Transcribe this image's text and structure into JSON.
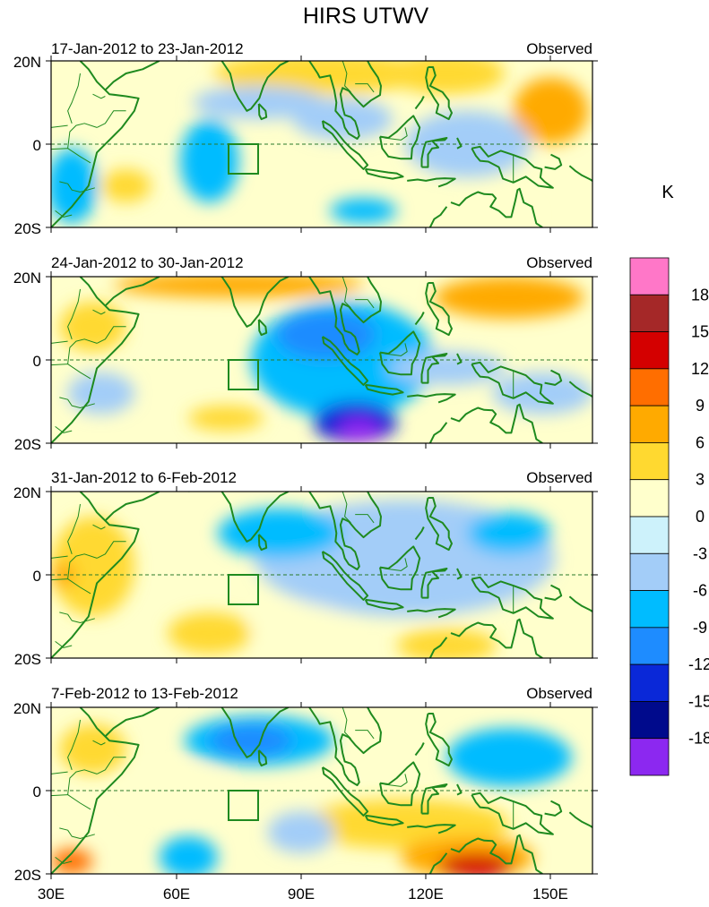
{
  "chart_data": {
    "type": "heatmap",
    "title": "HIRS UTWV",
    "variable_units": "K",
    "map": {
      "lon_range": [
        30,
        160
      ],
      "lat_range": [
        -20,
        20
      ],
      "x_ticks": [
        {
          "value": 30,
          "label": "30E"
        },
        {
          "value": 60,
          "label": "60E"
        },
        {
          "value": 90,
          "label": "90E"
        },
        {
          "value": 120,
          "label": "120E"
        },
        {
          "value": 150,
          "label": "150E"
        }
      ],
      "y_ticks": [
        {
          "value": 20,
          "label": "20N"
        },
        {
          "value": 0,
          "label": "0"
        },
        {
          "value": -20,
          "label": "20S"
        }
      ],
      "equator_dashed": true,
      "box": {
        "lon": [
          73,
          80
        ],
        "lat": [
          -7,
          0
        ]
      }
    },
    "colorbar": {
      "colors": [
        "#ff77c8",
        "#a52828",
        "#d40000",
        "#ff6e00",
        "#ffaa00",
        "#ffd930",
        "#ffffcc",
        "#cdf2fb",
        "#a3cdf8",
        "#00bcff",
        "#1e8cff",
        "#0a28d8",
        "#000a8c",
        "#8c28f0"
      ],
      "labels": [
        "18",
        "15",
        "12",
        "9",
        "6",
        "3",
        "0",
        "-3",
        "-6",
        "-9",
        "-12",
        "-15",
        "-18"
      ]
    },
    "panels": [
      {
        "date_label": "17-Jan-2012 to 23-Jan-2012",
        "source_label": "Observed",
        "anomalies": [
          {
            "lon": 95,
            "lat": 17,
            "rx": 26,
            "ry": 5,
            "value": 5
          },
          {
            "lon": 150,
            "lat": 8,
            "rx": 9,
            "ry": 8,
            "value": 9
          },
          {
            "lon": 125,
            "lat": 17,
            "rx": 14,
            "ry": 5,
            "value": 4
          },
          {
            "lon": 80,
            "lat": 10,
            "rx": 16,
            "ry": 4,
            "value": -4
          },
          {
            "lon": 68,
            "lat": -4,
            "rx": 7,
            "ry": 10,
            "value": -7
          },
          {
            "lon": 100,
            "lat": 6,
            "rx": 12,
            "ry": 5,
            "value": -5
          },
          {
            "lon": 105,
            "lat": -16,
            "rx": 8,
            "ry": 3,
            "value": -8
          },
          {
            "lon": 35,
            "lat": -10,
            "rx": 6,
            "ry": 9,
            "value": -6
          },
          {
            "lon": 130,
            "lat": 0,
            "rx": 15,
            "ry": 8,
            "value": -3
          },
          {
            "lon": 48,
            "lat": -10,
            "rx": 6,
            "ry": 4,
            "value": 4
          },
          {
            "lon": 138,
            "lat": -17,
            "rx": 8,
            "ry": 3,
            "value": 3
          }
        ]
      },
      {
        "date_label": "24-Jan-2012 to 30-Jan-2012",
        "source_label": "Observed",
        "anomalies": [
          {
            "lon": 75,
            "lat": 18,
            "rx": 30,
            "ry": 3,
            "value": 7
          },
          {
            "lon": 140,
            "lat": 15,
            "rx": 18,
            "ry": 5,
            "value": 8
          },
          {
            "lon": 40,
            "lat": 8,
            "rx": 8,
            "ry": 6,
            "value": 4
          },
          {
            "lon": 72,
            "lat": -14,
            "rx": 9,
            "ry": 3,
            "value": 6
          },
          {
            "lon": 100,
            "lat": 0,
            "rx": 22,
            "ry": 14,
            "value": -6
          },
          {
            "lon": 96,
            "lat": 6,
            "rx": 12,
            "ry": 6,
            "value": -10
          },
          {
            "lon": 103,
            "lat": -15,
            "rx": 10,
            "ry": 5,
            "value": -14
          },
          {
            "lon": 104,
            "lat": -17,
            "rx": 5,
            "ry": 3,
            "value": -19
          },
          {
            "lon": 148,
            "lat": -8,
            "rx": 12,
            "ry": 5,
            "value": -5
          },
          {
            "lon": 125,
            "lat": -2,
            "rx": 14,
            "ry": 4,
            "value": -3
          },
          {
            "lon": 42,
            "lat": -8,
            "rx": 8,
            "ry": 5,
            "value": -4
          }
        ]
      },
      {
        "date_label": "31-Jan-2012 to 6-Feb-2012",
        "source_label": "Observed",
        "anomalies": [
          {
            "lon": 40,
            "lat": 2,
            "rx": 10,
            "ry": 12,
            "value": 5
          },
          {
            "lon": 33,
            "lat": 0,
            "rx": 3,
            "ry": 3,
            "value": 8
          },
          {
            "lon": 115,
            "lat": 4,
            "rx": 36,
            "ry": 14,
            "value": -4
          },
          {
            "lon": 85,
            "lat": 10,
            "rx": 15,
            "ry": 6,
            "value": -6
          },
          {
            "lon": 140,
            "lat": 10,
            "rx": 10,
            "ry": 5,
            "value": -7
          },
          {
            "lon": 68,
            "lat": -14,
            "rx": 10,
            "ry": 5,
            "value": 4
          },
          {
            "lon": 125,
            "lat": -17,
            "rx": 12,
            "ry": 4,
            "value": 5
          },
          {
            "lon": 90,
            "lat": -12,
            "rx": 12,
            "ry": 5,
            "value": 2
          }
        ]
      },
      {
        "date_label": "7-Feb-2012 to 13-Feb-2012",
        "source_label": "Observed",
        "anomalies": [
          {
            "lon": 80,
            "lat": 12,
            "rx": 18,
            "ry": 6,
            "value": -6
          },
          {
            "lon": 78,
            "lat": 12,
            "rx": 10,
            "ry": 4,
            "value": -9
          },
          {
            "lon": 140,
            "lat": 8,
            "rx": 15,
            "ry": 7,
            "value": -6
          },
          {
            "lon": 40,
            "lat": 10,
            "rx": 8,
            "ry": 6,
            "value": 6
          },
          {
            "lon": 115,
            "lat": -8,
            "rx": 25,
            "ry": 6,
            "value": 4
          },
          {
            "lon": 130,
            "lat": -16,
            "rx": 16,
            "ry": 5,
            "value": 8
          },
          {
            "lon": 132,
            "lat": -18,
            "rx": 9,
            "ry": 3,
            "value": 13
          },
          {
            "lon": 63,
            "lat": -16,
            "rx": 7,
            "ry": 5,
            "value": -7
          },
          {
            "lon": 35,
            "lat": -17,
            "rx": 5,
            "ry": 3,
            "value": 10
          },
          {
            "lon": 90,
            "lat": -10,
            "rx": 8,
            "ry": 5,
            "value": -3
          },
          {
            "lon": 60,
            "lat": 0,
            "rx": 12,
            "ry": 5,
            "value": 3
          }
        ]
      }
    ]
  }
}
